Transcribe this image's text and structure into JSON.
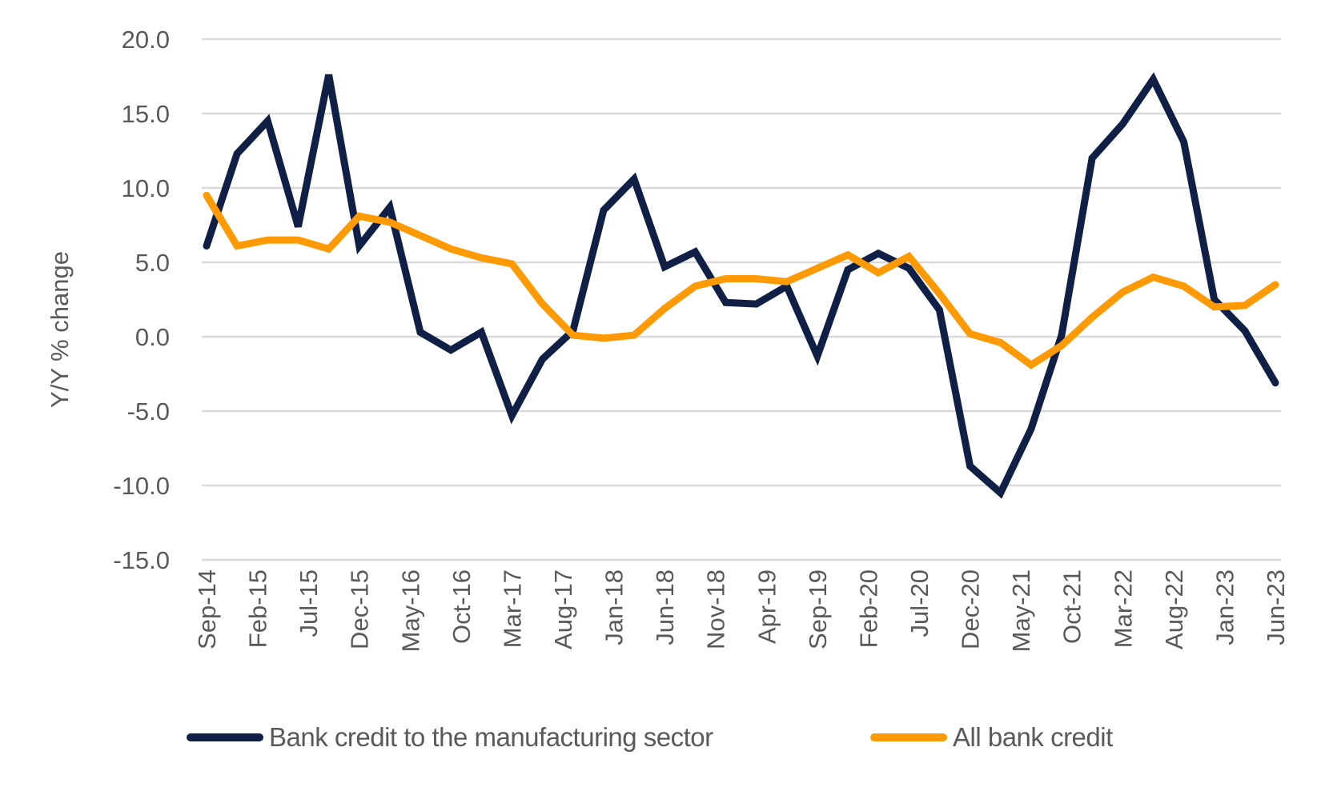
{
  "chart_data": {
    "type": "line",
    "title": "",
    "xlabel": "",
    "ylabel": "Y/Y % change",
    "ylim": [
      -15,
      20
    ],
    "yticks": [
      20,
      15,
      10,
      5,
      0,
      -5,
      -10,
      -15
    ],
    "ytick_labels": [
      "20.0",
      "15.0",
      "10.0",
      "5.0",
      "0.0",
      "-5.0",
      "-10.0",
      "-15.0"
    ],
    "grid": true,
    "legend_position": "bottom",
    "x": [
      "Sep-14",
      "Dec-14",
      "Mar-15",
      "Jun-15",
      "Sep-15",
      "Dec-15",
      "Mar-16",
      "Jun-16",
      "Sep-16",
      "Dec-16",
      "Mar-17",
      "Jun-17",
      "Sep-17",
      "Dec-17",
      "Mar-18",
      "Jun-18",
      "Sep-18",
      "Dec-18",
      "Mar-19",
      "Jun-19",
      "Sep-19",
      "Dec-19",
      "Mar-20",
      "Jun-20",
      "Sep-20",
      "Dec-20",
      "Mar-21",
      "Jun-21",
      "Sep-21",
      "Dec-21",
      "Mar-22",
      "Jun-22",
      "Sep-22",
      "Dec-22",
      "Mar-23",
      "Jun-23"
    ],
    "xtick_labels": [
      "Sep-14",
      "Feb-15",
      "Jul-15",
      "Dec-15",
      "May-16",
      "Oct-16",
      "Mar-17",
      "Aug-17",
      "Jan-18",
      "Jun-18",
      "Nov-18",
      "Apr-19",
      "Sep-19",
      "Feb-20",
      "Jul-20",
      "Dec-20",
      "May-21",
      "Oct-21",
      "Mar-22",
      "Aug-22",
      "Jan-23",
      "Jun-23"
    ],
    "series": [
      {
        "name": "Bank credit to the manufacturing sector",
        "color": "#0f1f45",
        "values": [
          6.1,
          12.3,
          14.5,
          7.4,
          17.6,
          6.1,
          8.7,
          0.3,
          -0.9,
          0.3,
          -5.3,
          -1.5,
          0.4,
          8.5,
          10.6,
          4.7,
          5.7,
          2.3,
          2.2,
          3.4,
          -1.3,
          4.5,
          5.6,
          4.6,
          1.8,
          -8.7,
          -10.5,
          -6.2,
          0.1,
          12.0,
          14.3,
          17.3,
          13.1,
          2.5,
          0.4,
          -3.1
        ]
      },
      {
        "name": "All bank credit",
        "color": "#ff9a05",
        "values": [
          9.5,
          6.1,
          6.5,
          6.5,
          5.9,
          8.1,
          7.7,
          6.8,
          5.9,
          5.3,
          4.9,
          2.2,
          0.1,
          -0.1,
          0.1,
          1.9,
          3.4,
          3.9,
          3.9,
          3.7,
          4.6,
          5.5,
          4.3,
          5.4,
          2.9,
          0.2,
          -0.4,
          -1.9,
          -0.6,
          1.3,
          3.0,
          4.0,
          3.4,
          2.0,
          2.1,
          3.5
        ]
      }
    ]
  },
  "colors": {
    "text": "#595959",
    "grid": "#d9d9d9"
  }
}
